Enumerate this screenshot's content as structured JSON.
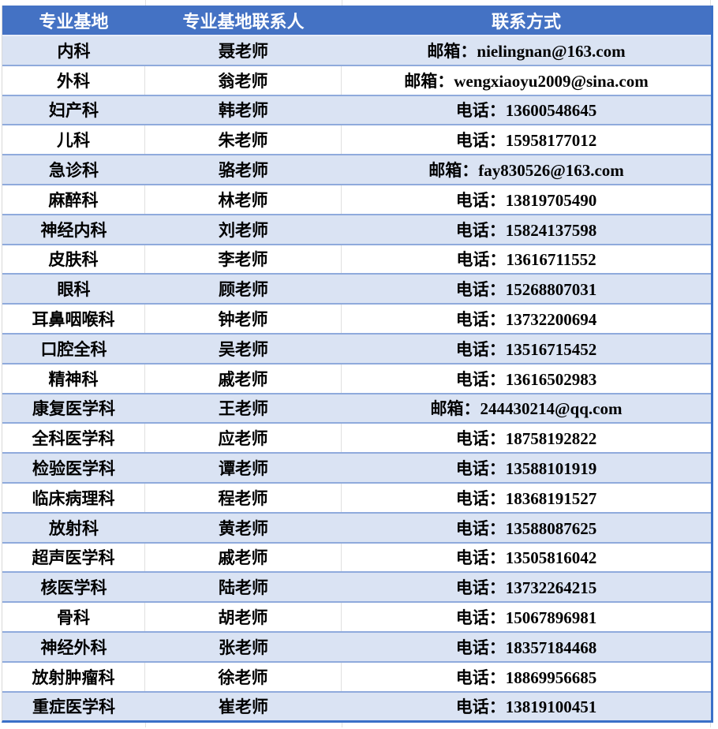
{
  "table": {
    "header": {
      "columns": [
        "专业基地",
        "专业基地联系人",
        "联系方式"
      ]
    },
    "rows": [
      {
        "base": "内科",
        "contact": "聂老师",
        "method": "邮箱：nielingnan@163.com"
      },
      {
        "base": "外科",
        "contact": "翁老师",
        "method": "邮箱：wengxiaoyu2009@sina.com"
      },
      {
        "base": "妇产科",
        "contact": "韩老师",
        "method": "电话：13600548645"
      },
      {
        "base": "儿科",
        "contact": "朱老师",
        "method": "电话：15958177012"
      },
      {
        "base": "急诊科",
        "contact": "骆老师",
        "method": "邮箱：fay830526@163.com"
      },
      {
        "base": "麻醉科",
        "contact": "林老师",
        "method": "电话：13819705490"
      },
      {
        "base": "神经内科",
        "contact": "刘老师",
        "method": "电话：15824137598"
      },
      {
        "base": "皮肤科",
        "contact": "李老师",
        "method": "电话：13616711552"
      },
      {
        "base": "眼科",
        "contact": "顾老师",
        "method": "电话：15268807031"
      },
      {
        "base": "耳鼻咽喉科",
        "contact": "钟老师",
        "method": "电话：13732200694"
      },
      {
        "base": "口腔全科",
        "contact": "吴老师",
        "method": "电话：13516715452"
      },
      {
        "base": "精神科",
        "contact": "戚老师",
        "method": "电话：13616502983"
      },
      {
        "base": "康复医学科",
        "contact": "王老师",
        "method": "邮箱：244430214@qq.com"
      },
      {
        "base": "全科医学科",
        "contact": "应老师",
        "method": "电话：18758192822"
      },
      {
        "base": "检验医学科",
        "contact": "谭老师",
        "method": "电话：13588101919"
      },
      {
        "base": "临床病理科",
        "contact": "程老师",
        "method": "电话：18368191527"
      },
      {
        "base": "放射科",
        "contact": "黄老师",
        "method": "电话：13588087625"
      },
      {
        "base": "超声医学科",
        "contact": "戚老师",
        "method": "电话：13505816042"
      },
      {
        "base": "核医学科",
        "contact": "陆老师",
        "method": "电话：13732264215"
      },
      {
        "base": "骨科",
        "contact": "胡老师",
        "method": "电话：15067896981"
      },
      {
        "base": "神经外科",
        "contact": "张老师",
        "method": "电话：18357184468"
      },
      {
        "base": "放射肿瘤科",
        "contact": "徐老师",
        "method": "电话：18869956685"
      },
      {
        "base": "重症医学科",
        "contact": "崔老师",
        "method": "电话：13819100451"
      }
    ]
  },
  "colors": {
    "header_bg": "#4472C4",
    "header_text": "#FFFFFF",
    "row_alt_bg": "#DAE3F3",
    "row_border": "#8FAADC",
    "outer_border": "#3A70C8",
    "gridline": "#E0E0E0",
    "text": "#000000"
  }
}
